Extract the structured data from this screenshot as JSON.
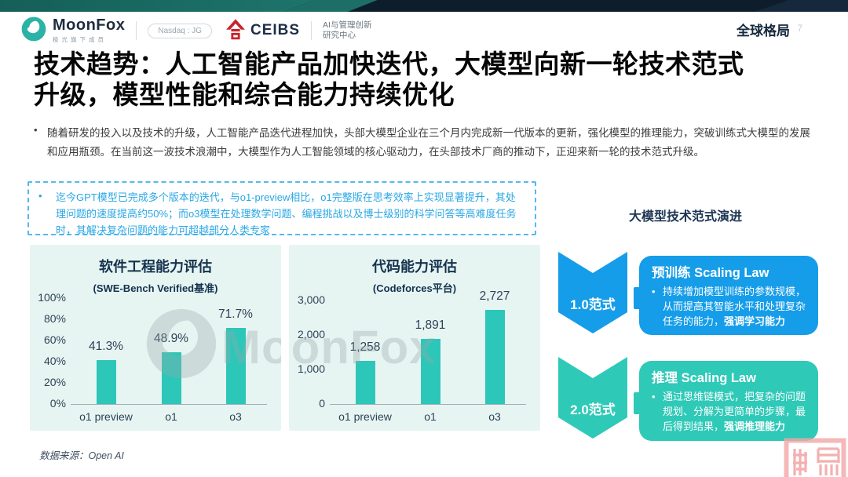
{
  "header": {
    "brand": "MoonFox",
    "brand_tagline": "极光旗下成员",
    "nasdaq_badge": "Nasdaq : JG",
    "ceibs": "CEIBS",
    "ceibs_center_line1": "AI与管理创新",
    "ceibs_center_line2": "研究中心",
    "section_label": "全球格局",
    "page_number": "7"
  },
  "title": {
    "line1": "技术趋势：人工智能产品加快迭代，大模型向新一轮技术范式",
    "line2": "升级，模型性能和综合能力持续优化"
  },
  "intro": {
    "bullet": "•",
    "text": "随着研发的投入以及技术的升级，人工智能产品迭代进程加快，头部大模型企业在三个月内完成新一代版本的更新，强化模型的推理能力，突破训练式大模型的发展和应用瓶颈。在当前这一波技术浪潮中，大模型作为人工智能领域的核心驱动力，在头部技术厂商的推动下，正迎来新一轮的技术范式升级。"
  },
  "quote": {
    "bullet": "•",
    "text": "迄今GPT模型已完成多个版本的迭代，与o1-preview相比，o1完整版在思考效率上实现显著提升，其处理问题的速度提高约50%；而o3模型在处理数学问题、编程挑战以及博士级别的科学问答等高难度任务时，其解决复杂问题的能力可超越部分人类专家"
  },
  "right_panel": {
    "heading": "大模型技术范式演进",
    "stages": [
      {
        "arrow_label": "1.0范式",
        "card_title": "预训练 Scaling Law",
        "bullet": "•",
        "body": "持续增加模型训练的参数规模，从而提高其智能水平和处理复杂任务的能力，",
        "body_bold": "强调学习能力",
        "color": "#169de9"
      },
      {
        "arrow_label": "2.0范式",
        "card_title": "推理 Scaling Law",
        "bullet": "•",
        "body": "通过思维链模式，把复杂的问题规划、分解为更简单的步骤，最后得到结果，",
        "body_bold": "强调推理能力",
        "color": "#2fc9b8"
      }
    ]
  },
  "watermark": {
    "text": "MoonFox"
  },
  "source": {
    "text": "数据来源：Open AI"
  },
  "colors": {
    "accent_blue": "#169de9",
    "accent_teal": "#2fc9b8",
    "bar_teal": "#2cc7b8",
    "chart_bg": "#e7f5f2",
    "navy_text": "#14324e",
    "quote_blue": "#2aa7e4",
    "band_navy": "#0d1d2c",
    "band_teal": "#2a988c",
    "seal_red": "#f29d9d"
  },
  "chart_data": [
    {
      "type": "bar",
      "title": "软件工程能力评估",
      "subtitle": "(SWE-Bench Verified基准)",
      "categories": [
        "o1 preview",
        "o1",
        "o3"
      ],
      "values": [
        41.3,
        48.9,
        71.7
      ],
      "value_labels": [
        "41.3%",
        "48.9%",
        "71.7%"
      ],
      "ylabel": "",
      "xlabel": "",
      "ylim": [
        0,
        100
      ],
      "grid": false,
      "yticks": [
        {
          "value": 0,
          "label": "0%"
        },
        {
          "value": 20,
          "label": "20%"
        },
        {
          "value": 40,
          "label": "40%"
        },
        {
          "value": 60,
          "label": "60%"
        },
        {
          "value": 80,
          "label": "80%"
        },
        {
          "value": 100,
          "label": "100%"
        }
      ],
      "bar_color": "#2cc7b8"
    },
    {
      "type": "bar",
      "title": "代码能力评估",
      "subtitle": "(Codeforces平台)",
      "categories": [
        "o1 preview",
        "o1",
        "o3"
      ],
      "values": [
        1258,
        1891,
        2727
      ],
      "value_labels": [
        "1,258",
        "1,891",
        "2,727"
      ],
      "ylabel": "",
      "xlabel": "",
      "ylim": [
        0,
        3000
      ],
      "grid": false,
      "yticks": [
        {
          "value": 0,
          "label": "0"
        },
        {
          "value": 1000,
          "label": "1,000"
        },
        {
          "value": 2000,
          "label": "2,000"
        },
        {
          "value": 3000,
          "label": "3,000"
        }
      ],
      "bar_color": "#2cc7b8"
    }
  ]
}
